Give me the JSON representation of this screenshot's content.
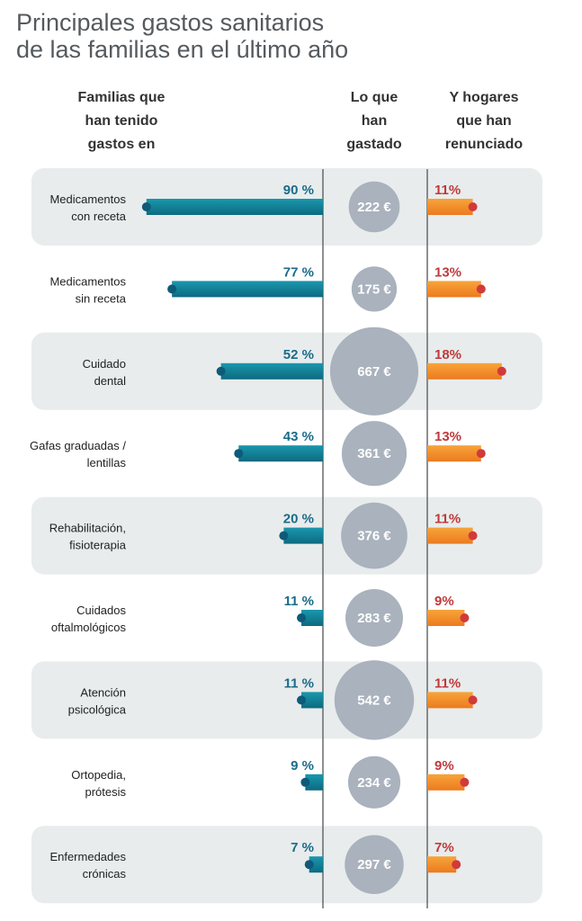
{
  "chart_data": {
    "type": "bar",
    "title_lines": [
      "Principales gastos sanitarios",
      "de las familias en el último año"
    ],
    "column_headers": {
      "left": [
        "Familias que",
        "han tenido",
        "gastos en"
      ],
      "middle": [
        "Lo que",
        "han",
        "gastado"
      ],
      "right": [
        "Y hogares",
        "que han",
        "renunciado"
      ]
    },
    "categories": [
      [
        "Medicamentos",
        "con receta"
      ],
      [
        "Medicamentos",
        "sin receta"
      ],
      [
        "Cuidado",
        "dental"
      ],
      [
        "Gafas graduadas /",
        "lentillas"
      ],
      [
        "Rehabilitación,",
        "fisioterapia"
      ],
      [
        "Cuidados",
        "oftalmológicos"
      ],
      [
        "Atención",
        "psicológica"
      ],
      [
        "Ortopedia,",
        "prótesis"
      ],
      [
        "Enfermedades",
        "crónicas"
      ]
    ],
    "series": [
      {
        "name": "Familias que han tenido gastos en",
        "unit": "%",
        "values": [
          90,
          77,
          52,
          43,
          20,
          11,
          11,
          9,
          7
        ],
        "color": "#127d96",
        "label_color": "#1a6b8a"
      },
      {
        "name": "Lo que han gastado",
        "unit": "€",
        "values": [
          222,
          175,
          667,
          361,
          376,
          283,
          542,
          234,
          297
        ],
        "color": "#a9b2bd"
      },
      {
        "name": "Y hogares que han renunciado",
        "unit": "%",
        "values": [
          11,
          13,
          18,
          13,
          11,
          9,
          11,
          9,
          7
        ],
        "color": "#f18a2a",
        "label_color": "#c0393b"
      }
    ],
    "row_band_color": "#e8ecec"
  }
}
